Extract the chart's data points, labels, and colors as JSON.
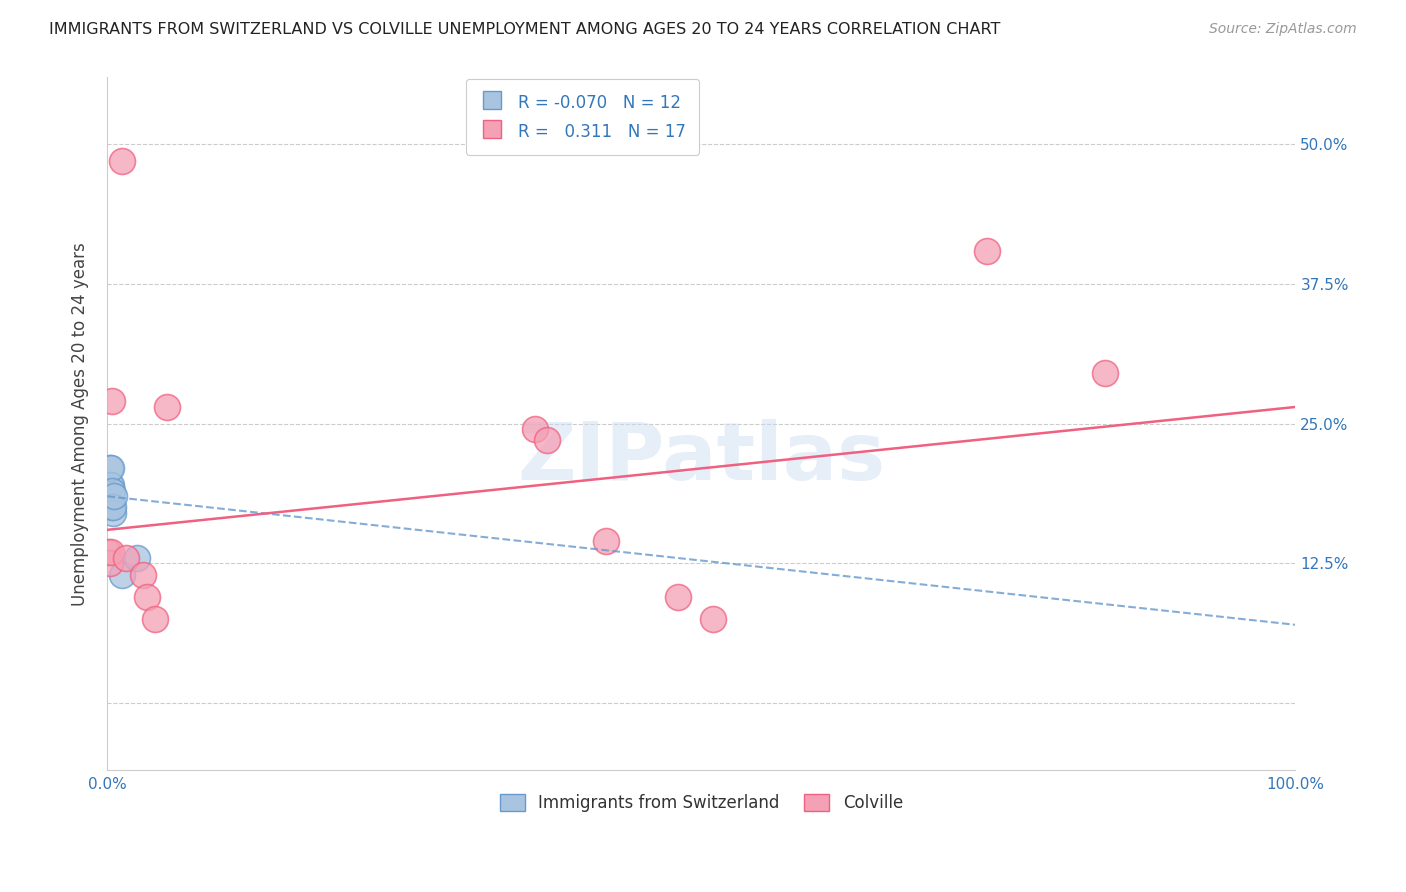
{
  "title": "IMMIGRANTS FROM SWITZERLAND VS COLVILLE UNEMPLOYMENT AMONG AGES 20 TO 24 YEARS CORRELATION CHART",
  "source": "Source: ZipAtlas.com",
  "ylabel": "Unemployment Among Ages 20 to 24 years",
  "xlim": [
    0,
    1.0
  ],
  "ylim": [
    -0.06,
    0.56
  ],
  "xticks": [
    0.0,
    0.1,
    0.2,
    0.3,
    0.4,
    0.5,
    0.6,
    0.7,
    0.8,
    0.9,
    1.0
  ],
  "xticklabels": [
    "0.0%",
    "",
    "",
    "",
    "",
    "",
    "",
    "",
    "",
    "",
    "100.0%"
  ],
  "yticks": [
    0.0,
    0.125,
    0.25,
    0.375,
    0.5
  ],
  "yticklabels": [
    "",
    "12.5%",
    "25.0%",
    "37.5%",
    "50.0%"
  ],
  "blue_R": "-0.070",
  "blue_N": "12",
  "pink_R": "0.311",
  "pink_N": "17",
  "blue_color": "#a8c4e0",
  "pink_color": "#f4a0b5",
  "blue_edge_color": "#6699cc",
  "pink_edge_color": "#f06080",
  "blue_line_color": "#6699cc",
  "pink_line_color": "#f06080",
  "watermark": "ZIPatlas",
  "blue_scatter_x": [
    0.001,
    0.002,
    0.002,
    0.003,
    0.003,
    0.004,
    0.004,
    0.005,
    0.005,
    0.006,
    0.012,
    0.025
  ],
  "blue_scatter_y": [
    0.175,
    0.195,
    0.21,
    0.195,
    0.21,
    0.175,
    0.19,
    0.17,
    0.175,
    0.185,
    0.115,
    0.13
  ],
  "pink_scatter_x": [
    0.001,
    0.002,
    0.003,
    0.004,
    0.012,
    0.016,
    0.03,
    0.033,
    0.04,
    0.05,
    0.36,
    0.37,
    0.42,
    0.48,
    0.51,
    0.74,
    0.84
  ],
  "pink_scatter_y": [
    0.135,
    0.125,
    0.135,
    0.27,
    0.485,
    0.13,
    0.115,
    0.095,
    0.075,
    0.265,
    0.245,
    0.235,
    0.145,
    0.095,
    0.075,
    0.405,
    0.295
  ],
  "blue_line_x0": 0.0,
  "blue_line_x1": 1.0,
  "blue_line_y0": 0.185,
  "blue_line_y1": 0.07,
  "pink_line_x0": 0.0,
  "pink_line_x1": 1.0,
  "pink_line_y0": 0.155,
  "pink_line_y1": 0.265
}
